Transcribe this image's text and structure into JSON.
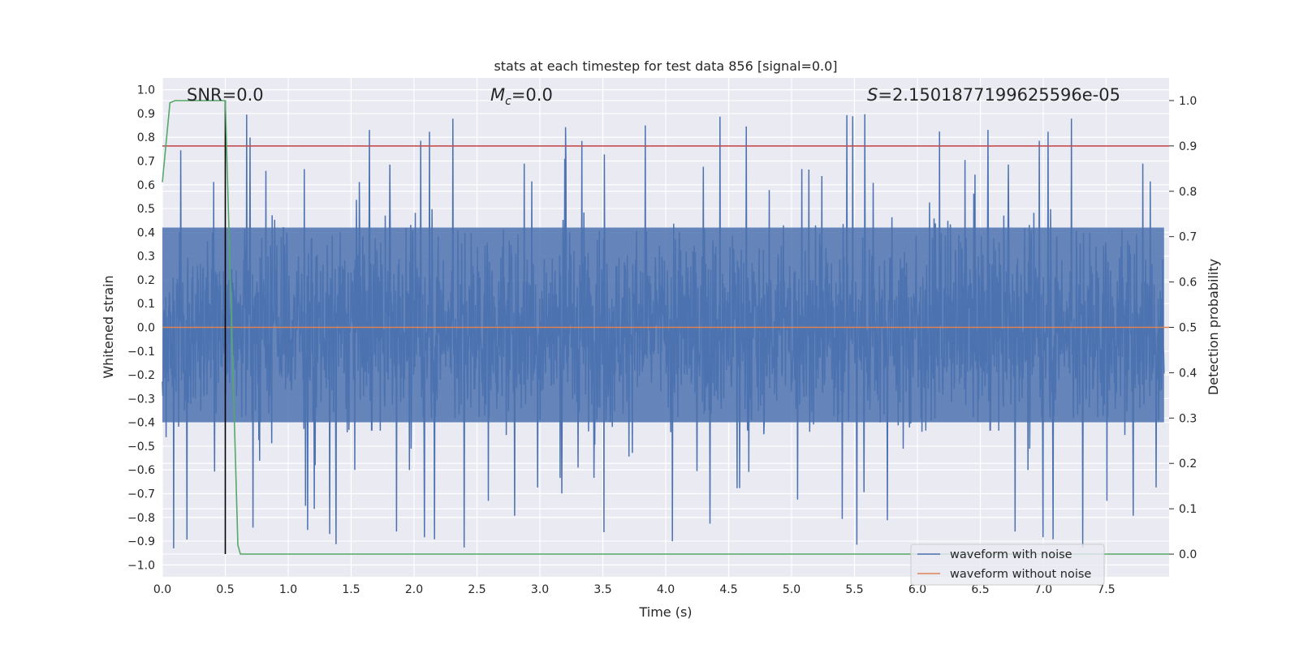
{
  "chart_data": {
    "type": "line",
    "title": "stats at each timestep for test data 856 [signal=0.0]",
    "xlabel": "Time (s)",
    "ylabel": "Whitened strain",
    "ylabel_right": "Detection probability",
    "xlim": [
      0.0,
      8.0
    ],
    "ylim": [
      -1.05,
      1.05
    ],
    "ylim_right": [
      -0.05,
      1.05
    ],
    "x_ticks": [
      "0.0",
      "0.5",
      "1.0",
      "1.5",
      "2.0",
      "2.5",
      "3.0",
      "3.5",
      "4.0",
      "4.5",
      "5.0",
      "5.5",
      "6.0",
      "6.5",
      "7.0",
      "7.5"
    ],
    "y_ticks": [
      "1.0",
      "0.9",
      "0.8",
      "0.7",
      "0.6",
      "0.5",
      "0.4",
      "0.3",
      "0.2",
      "0.1",
      "0.0",
      "−0.1",
      "−0.2",
      "−0.3",
      "−0.4",
      "−0.5",
      "−0.6",
      "−0.7",
      "−0.8",
      "−0.9",
      "−1.0"
    ],
    "y_right_ticks": [
      "1.0",
      "0.9",
      "0.8",
      "0.7",
      "0.6",
      "0.5",
      "0.4",
      "0.3",
      "0.2",
      "0.1",
      "0.0"
    ],
    "annotations": {
      "snr": "SNR=0.0",
      "mc_symbol": "M",
      "mc_sub": "c",
      "mc_value": "=0.0",
      "s_symbol": "S",
      "s_value": "=2.1501877199625596e-05"
    },
    "grid": true,
    "legend_position": "lower-right",
    "series": [
      {
        "name": "waveform with noise",
        "color": "#4c72b0",
        "style": "dense-noise",
        "typical_range": [
          -0.4,
          0.42
        ],
        "extreme_range": [
          -0.93,
          1.0
        ]
      },
      {
        "name": "waveform without noise",
        "color": "#dd8452",
        "x": [
          0.0,
          8.0
        ],
        "y": [
          0.0,
          0.0
        ]
      },
      {
        "color": "#55a868",
        "axis": "right",
        "x": [
          0.0,
          0.06,
          0.1,
          0.2,
          0.3,
          0.45,
          0.5,
          0.6,
          0.62,
          8.0
        ],
        "y": [
          0.82,
          0.995,
          1.0,
          1.0,
          1.0,
          1.0,
          1.0,
          0.02,
          0.0,
          0.0
        ]
      },
      {
        "color": "#c44e52",
        "axis": "right",
        "x": [
          0.0,
          8.0
        ],
        "y": [
          0.9,
          0.9
        ]
      },
      {
        "color": "#000000",
        "axis": "right",
        "x": [
          0.5,
          0.5
        ],
        "y": [
          0.0,
          1.0
        ]
      }
    ]
  }
}
